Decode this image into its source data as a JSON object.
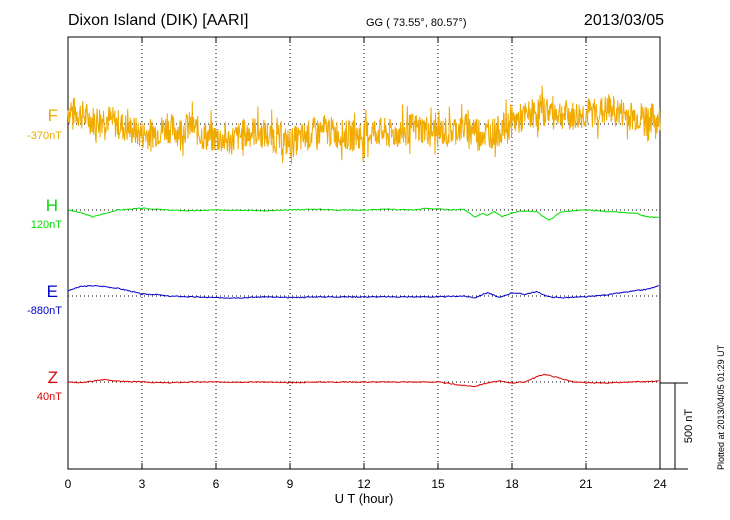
{
  "header": {
    "station": "Dixon Island (DIK)  [AARI]",
    "coords": "GG ( 73.55°,  80.57°)",
    "date": "2013/03/05"
  },
  "footer": {
    "plotted": "Plotted at 2013/04/05 01:29 UT"
  },
  "colors": {
    "F": "#f0aa00",
    "H": "#00dd00",
    "E": "#0000cc",
    "Z": "#dd0000"
  },
  "chart_data": {
    "type": "line",
    "xlabel": "U T (hour)",
    "xlim": [
      0,
      24
    ],
    "xticks": [
      0,
      3,
      6,
      9,
      12,
      15,
      18,
      21,
      24
    ],
    "scale_bar": {
      "value": 500,
      "label": "500 nT"
    },
    "series": [
      {
        "name": "F",
        "offset_label": "-370nT",
        "color": "#f0aa00",
        "baseline_nT": 0,
        "x": [
          0,
          0.5,
          1,
          1.5,
          2,
          2.5,
          3,
          3.5,
          4,
          4.5,
          5,
          5.5,
          6,
          6.5,
          7,
          7.5,
          8,
          8.5,
          9,
          9.5,
          10,
          10.5,
          11,
          11.5,
          12,
          12.5,
          13,
          13.5,
          14,
          14.5,
          15,
          15.5,
          16,
          16.5,
          17,
          17.5,
          18,
          18.5,
          19,
          19.5,
          20,
          20.5,
          21,
          21.5,
          22,
          22.5,
          23,
          23.5,
          24
        ],
        "y": [
          80,
          60,
          20,
          40,
          0,
          -30,
          -60,
          -50,
          -20,
          -40,
          -10,
          -70,
          -80,
          -100,
          -70,
          -40,
          -60,
          -90,
          -110,
          -80,
          -50,
          -40,
          -60,
          -70,
          -60,
          -40,
          -60,
          -50,
          -20,
          -30,
          -50,
          -40,
          -20,
          -30,
          -60,
          -40,
          10,
          40,
          70,
          80,
          60,
          40,
          60,
          70,
          80,
          60,
          40,
          40,
          20
        ],
        "envelope": 90
      },
      {
        "name": "H",
        "offset_label": "120nT",
        "color": "#00dd00",
        "baseline_nT": 0,
        "x": [
          0,
          0.5,
          1,
          1.5,
          2,
          2.5,
          3,
          3.5,
          4,
          5,
          6,
          7,
          8,
          9,
          10,
          11,
          12,
          13,
          14,
          14.5,
          15,
          15.5,
          16,
          16.2,
          16.5,
          16.8,
          17,
          17.3,
          17.6,
          18,
          18.5,
          19,
          19.3,
          19.5,
          19.7,
          20,
          21,
          22,
          23,
          23.5,
          24
        ],
        "y": [
          0,
          -15,
          -40,
          -20,
          0,
          5,
          10,
          5,
          0,
          -5,
          0,
          0,
          -5,
          0,
          5,
          0,
          0,
          5,
          0,
          10,
          5,
          0,
          5,
          -10,
          -40,
          -20,
          -30,
          -10,
          -40,
          -15,
          -5,
          -10,
          -40,
          -60,
          -40,
          -10,
          0,
          -10,
          -20,
          -40,
          -45
        ]
      },
      {
        "name": "E",
        "offset_label": "-880nT",
        "color": "#0000cc",
        "baseline_nT": 0,
        "x": [
          0,
          0.5,
          1,
          1.5,
          2,
          2.5,
          3,
          3.5,
          4,
          5,
          6,
          7,
          8,
          9,
          10,
          11,
          12,
          13,
          14,
          15,
          16,
          16.5,
          17,
          17.5,
          18,
          18.5,
          19,
          19.5,
          20,
          21,
          22,
          23,
          23.5,
          24
        ],
        "y": [
          30,
          55,
          60,
          55,
          45,
          30,
          10,
          10,
          0,
          -5,
          -10,
          -10,
          -5,
          -10,
          -5,
          -5,
          -5,
          -5,
          -5,
          -5,
          0,
          -10,
          20,
          -10,
          20,
          10,
          25,
          -5,
          -10,
          -5,
          10,
          30,
          40,
          60
        ]
      },
      {
        "name": "Z",
        "offset_label": "40nT",
        "color": "#dd0000",
        "baseline_nT": 0,
        "x": [
          0,
          0.5,
          1,
          1.5,
          2,
          3,
          4,
          5,
          6,
          7,
          8,
          9,
          10,
          11,
          12,
          13,
          14,
          15,
          15.5,
          16,
          16.5,
          17,
          17.5,
          18,
          18.5,
          19,
          19.3,
          19.6,
          20,
          20.5,
          21,
          22,
          23,
          24
        ],
        "y": [
          0,
          -5,
          5,
          15,
          5,
          0,
          -5,
          0,
          0,
          0,
          0,
          -5,
          0,
          0,
          0,
          0,
          0,
          0,
          -10,
          -20,
          -25,
          -5,
          5,
          -5,
          0,
          30,
          45,
          35,
          20,
          0,
          -5,
          -5,
          0,
          5
        ]
      }
    ]
  }
}
